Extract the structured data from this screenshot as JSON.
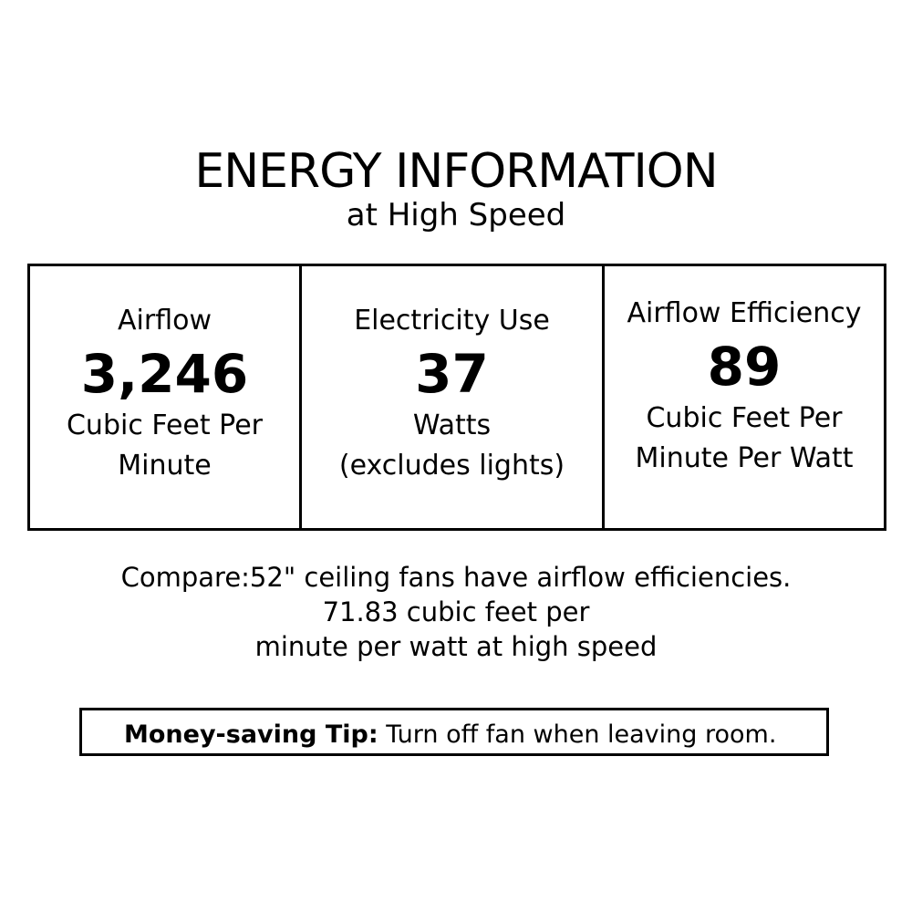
{
  "title": "ENERGY INFORMATION",
  "subtitle": "at High Speed",
  "cells": [
    {
      "label": "Airflow",
      "value": "3,246",
      "unit1": "Cubic Feet Per",
      "unit2": "Minute"
    },
    {
      "label": "Electricity Use",
      "value": "37",
      "unit1": "Watts",
      "unit2": "(excludes lights)"
    },
    {
      "label": "Airflow Efficiency",
      "value": "89",
      "unit1": "Cubic Feet Per",
      "unit2": "Minute Per Watt"
    }
  ],
  "compare": [
    "Compare:52\" ceiling fans have airflow efficiencies.",
    "71.83 cubic feet per",
    "minute per watt at high speed"
  ],
  "tip": {
    "label": "Money-saving Tip:",
    "text": "Turn off fan when leaving room."
  }
}
